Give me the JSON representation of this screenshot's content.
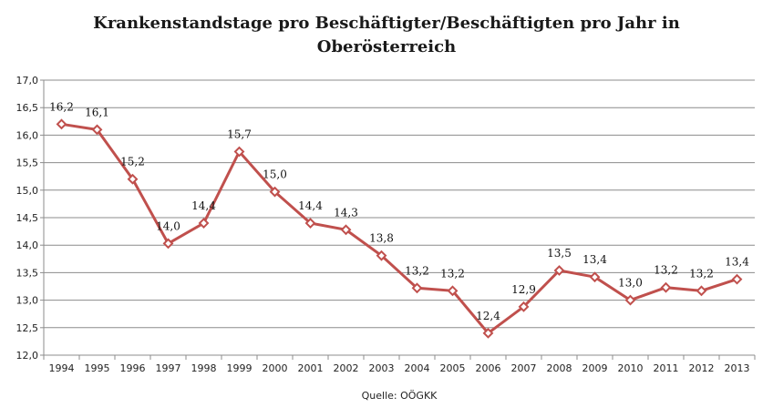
{
  "chart_data": {
    "type": "line",
    "title_line1": "Krankenstandstage pro Beschäftigter/Beschäftigten pro Jahr in",
    "title_line2": "Oberösterreich",
    "xlabel": "Quelle: OÖGKK",
    "ylabel": "",
    "ylim": [
      12.0,
      17.0
    ],
    "yticks": [
      "12,0",
      "12,5",
      "13,0",
      "13,5",
      "14,0",
      "14,5",
      "15,0",
      "15,5",
      "16,0",
      "16,5",
      "17,0"
    ],
    "grid": true,
    "legend": "none",
    "categories": [
      "1994",
      "1995",
      "1996",
      "1997",
      "1998",
      "1999",
      "2000",
      "2001",
      "2002",
      "2003",
      "2004",
      "2005",
      "2006",
      "2007",
      "2008",
      "2009",
      "2010",
      "2011",
      "2012",
      "2013"
    ],
    "series": [
      {
        "values": [
          16.2,
          16.1,
          15.2,
          14.03,
          14.4,
          15.7,
          14.97,
          14.4,
          14.28,
          13.81,
          13.22,
          13.17,
          12.4,
          12.88,
          13.54,
          13.42,
          13.0,
          13.23,
          13.17,
          13.38
        ],
        "labels": [
          "16,2",
          "16,1",
          "15,2",
          "14,0",
          "14,4",
          "15,7",
          "15,0",
          "14,4",
          "14,3",
          "13,8",
          "13,2",
          "13,2",
          "12,4",
          "12,9",
          "13,5",
          "13,4",
          "13,0",
          "13,2",
          "13,2",
          "13,4"
        ],
        "color": "#C0504D"
      }
    ],
    "colors": {
      "line": "#C0504D",
      "grid": "#8c8c8c",
      "axis": "#8c8c8c"
    }
  }
}
